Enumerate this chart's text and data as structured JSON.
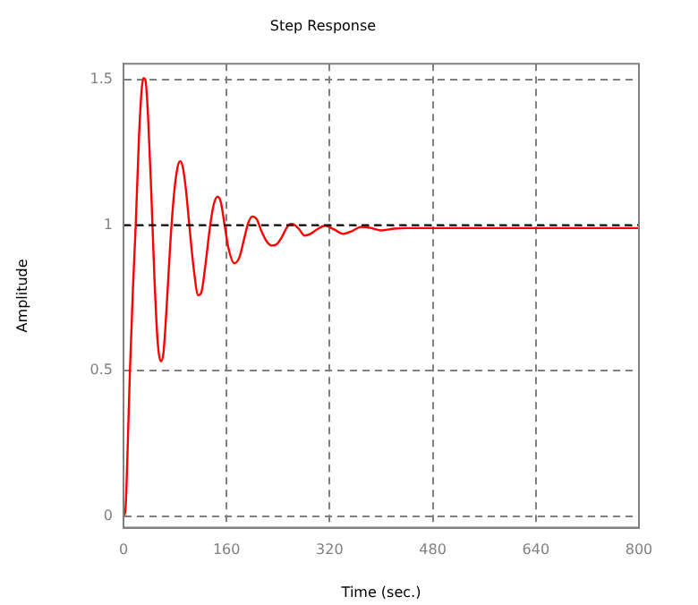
{
  "chart_data": {
    "type": "line",
    "title": "Step Response",
    "xlabel": "Time (sec.)",
    "ylabel": "Amplitude",
    "x": [
      0,
      3,
      6,
      10,
      15,
      19,
      24,
      28,
      31,
      34,
      38,
      43,
      48,
      53,
      58,
      62,
      67,
      73,
      79,
      84,
      88,
      92,
      97,
      103,
      109,
      116,
      121,
      127,
      134,
      140,
      146,
      151,
      157,
      163,
      172,
      180,
      188,
      194,
      200,
      207,
      214,
      222,
      230,
      238,
      246,
      253,
      259,
      266,
      273,
      281,
      290,
      300,
      313,
      327,
      341,
      355,
      369,
      385,
      400,
      420,
      440,
      480,
      560,
      640,
      720,
      800
    ],
    "series": [
      {
        "color": "#ff0000",
        "values": [
          0,
          0.02,
          0.2,
          0.5,
          0.8,
          1.0,
          1.3,
          1.46,
          1.506,
          1.5,
          1.38,
          1.12,
          0.82,
          0.6,
          0.532,
          0.56,
          0.72,
          0.95,
          1.12,
          1.2,
          1.22,
          1.2,
          1.12,
          0.98,
          0.85,
          0.759,
          0.77,
          0.86,
          0.99,
          1.07,
          1.098,
          1.08,
          1.0,
          0.92,
          0.869,
          0.89,
          0.96,
          1.01,
          1.03,
          1.02,
          0.98,
          0.945,
          0.93,
          0.935,
          0.96,
          0.99,
          1.004,
          1.0,
          0.985,
          0.964,
          0.97,
          0.985,
          0.998,
          0.985,
          0.97,
          0.98,
          0.994,
          0.99,
          0.982,
          0.988,
          0.99,
          0.99,
          0.99,
          0.99,
          0.99,
          0.99
        ]
      }
    ],
    "xlim": [
      0,
      800
    ],
    "xticks": [
      0,
      160,
      320,
      480,
      640,
      800
    ],
    "ylim": [
      -0.04,
      1.555
    ],
    "yticks": [
      0,
      0.5,
      1,
      1.5
    ],
    "grid": true,
    "legend": false,
    "marker": "none",
    "line_style": "solid",
    "ref_lines": [
      {
        "axis": "y",
        "value": 1,
        "color": "#000000",
        "line_style": "dashed"
      }
    ]
  }
}
